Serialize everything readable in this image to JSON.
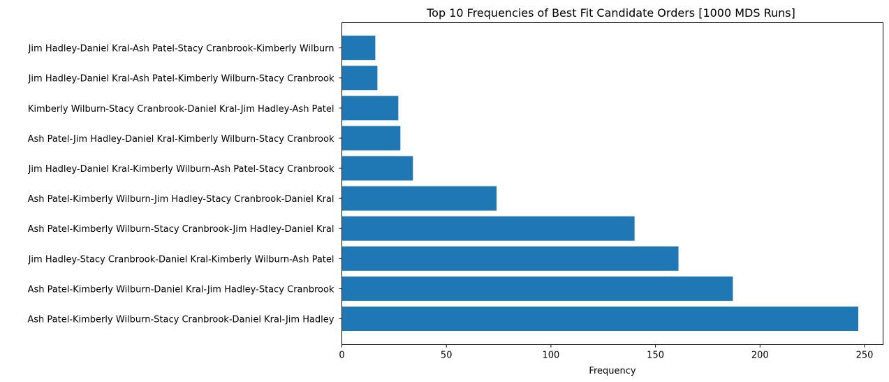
{
  "chart_data": {
    "type": "bar",
    "orientation": "horizontal",
    "title": "Top 10 Frequencies of Best Fit Candidate Orders [1000 MDS Runs]",
    "xlabel": "Frequency",
    "ylabel": "",
    "xlim": [
      0,
      260
    ],
    "xticks": [
      0,
      50,
      100,
      150,
      200,
      250
    ],
    "grid": false,
    "bar_color": "#1f77b4",
    "categories": [
      "Ash Patel-Kimberly Wilburn-Stacy Cranbrook-Daniel Kral-Jim Hadley",
      "Ash Patel-Kimberly Wilburn-Daniel Kral-Jim Hadley-Stacy Cranbrook",
      "Jim Hadley-Stacy Cranbrook-Daniel Kral-Kimberly Wilburn-Ash Patel",
      "Ash Patel-Kimberly Wilburn-Stacy Cranbrook-Jim Hadley-Daniel Kral",
      "Ash Patel-Kimberly Wilburn-Jim Hadley-Stacy Cranbrook-Daniel Kral",
      "Jim Hadley-Daniel Kral-Kimberly Wilburn-Ash Patel-Stacy Cranbrook",
      "Ash Patel-Jim Hadley-Daniel Kral-Kimberly Wilburn-Stacy Cranbrook",
      "Kimberly Wilburn-Stacy Cranbrook-Daniel Kral-Jim Hadley-Ash Patel",
      "Jim Hadley-Daniel Kral-Ash Patel-Kimberly Wilburn-Stacy Cranbrook",
      "Jim Hadley-Daniel Kral-Ash Patel-Stacy Cranbrook-Kimberly Wilburn"
    ],
    "values": [
      247,
      187,
      161,
      140,
      74,
      34,
      28,
      27,
      17,
      16
    ]
  }
}
